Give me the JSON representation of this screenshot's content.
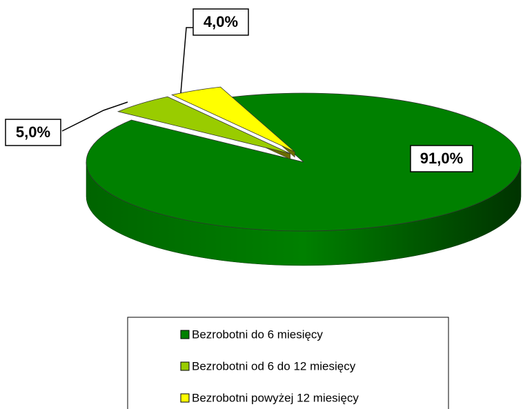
{
  "chart_data": {
    "type": "pie",
    "categories": [
      "Bezrobotni do 6 miesięcy",
      "Bezrobotni od 6 do 12 miesięcy",
      "Bezrobotni powyżej 12 miesięcy"
    ],
    "values": [
      91,
      5,
      4
    ],
    "value_labels": [
      "91,0%",
      "5,0%",
      "4,0%"
    ],
    "colors": [
      "#008000",
      "#99cc00",
      "#ffff00"
    ],
    "legend": "bottom"
  }
}
